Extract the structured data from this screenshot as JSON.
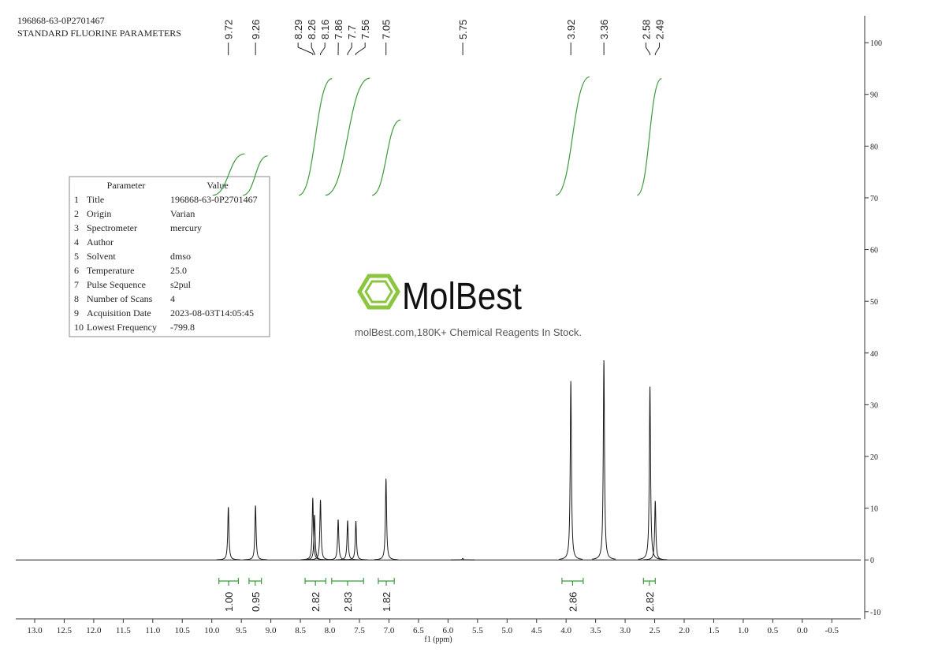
{
  "header": {
    "title": "196868-63-0P2701467",
    "subtitle": "STANDARD FLUORINE PARAMETERS"
  },
  "parameters": {
    "columns": [
      "Parameter",
      "Value"
    ],
    "rows": [
      [
        "1",
        "Title",
        "196868-63-0P2701467"
      ],
      [
        "2",
        "Origin",
        "Varian"
      ],
      [
        "3",
        "Spectrometer",
        "mercury"
      ],
      [
        "4",
        "Author"
      ],
      [
        "5",
        "Solvent",
        "dmso"
      ],
      [
        "6",
        "Temperature",
        "25.0"
      ],
      [
        "7",
        "Pulse Sequence",
        "s2pul"
      ],
      [
        "8",
        "Number of Scans",
        "4"
      ],
      [
        "9",
        "Acquisition Date",
        "2023-08-03T14:05:45"
      ],
      [
        "10",
        "Lowest Frequency",
        "-799.8"
      ]
    ]
  },
  "watermark": {
    "brand": "MolBest",
    "tagline": "molBest.com,180K+ Chemical Reagents In Stock."
  },
  "chart_data": {
    "type": "nmr",
    "xlabel": "f1 (ppm)",
    "color": "#1a1a1a",
    "xlim": [
      13.32,
      -0.99
    ],
    "ylim": [
      -11.4,
      105.2
    ],
    "xticks": [
      {
        "value": 13,
        "label": "13.0"
      },
      12.5,
      {
        "value": 12,
        "label": "12.0"
      },
      11.5,
      {
        "value": 11,
        "label": "11.0"
      },
      10.5,
      {
        "value": 10,
        "label": "10.0"
      },
      9.5,
      {
        "value": 9,
        "label": "9.0"
      },
      8.5,
      {
        "value": 8,
        "label": "8.0"
      },
      7.5,
      {
        "value": 7,
        "label": "7.0"
      },
      6.5,
      {
        "value": 6,
        "label": "6.0"
      },
      5.5,
      {
        "value": 5,
        "label": "5.0"
      },
      4.5,
      {
        "value": 4,
        "label": "4.0"
      },
      3.5,
      {
        "value": 3,
        "label": "3.0"
      },
      2.5,
      {
        "value": 2,
        "label": "2.0"
      },
      1.5,
      {
        "value": 1,
        "label": "1.0"
      },
      0.5,
      {
        "value": 0,
        "label": "0.0"
      },
      -0.5
    ],
    "yticks": [
      -10,
      0,
      10,
      20,
      30,
      40,
      50,
      60,
      70,
      80,
      90,
      100
    ],
    "peaks": {
      "x": [
        9.72,
        9.26,
        8.29,
        8.26,
        8.16,
        7.86,
        7.7,
        7.56,
        7.05,
        5.75,
        3.92,
        3.36,
        2.58,
        2.49
      ],
      "values": [
        10.2,
        10.5,
        12.0,
        8.7,
        11.6,
        7.8,
        7.6,
        7.5,
        15.7,
        0.3,
        34.6,
        38.6,
        33.5,
        11.4
      ]
    },
    "integrals": {
      "color": "#3c9a3c",
      "from": [
        9.88,
        9.37,
        8.42,
        7.97,
        7.18,
        4.07,
        2.69
      ],
      "to": [
        9.55,
        9.16,
        8.07,
        7.43,
        6.91,
        3.71,
        2.49
      ],
      "values": [
        {
          "value": 1.0,
          "label": "1.00"
        },
        0.95,
        2.82,
        2.83,
        1.82,
        2.86,
        2.82
      ]
    }
  }
}
